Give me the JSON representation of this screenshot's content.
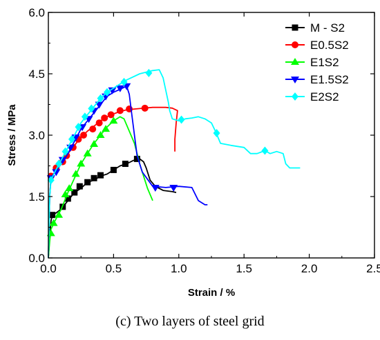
{
  "chart_data": {
    "type": "line",
    "xlabel": "Strain / %",
    "ylabel": "Stress / MPa",
    "caption": "(c) Two layers of steel grid",
    "xlim": [
      0.0,
      2.5
    ],
    "ylim": [
      0.0,
      6.0
    ],
    "xticks": [
      "0.0",
      "0.5",
      "1.0",
      "1.5",
      "2.0",
      "2.5"
    ],
    "yticks": [
      "0.0",
      "1.5",
      "3.0",
      "4.5",
      "6.0"
    ],
    "grid": false,
    "legend_position": "top-right",
    "series": [
      {
        "name": "M - S2",
        "color": "#000000",
        "marker": "square",
        "points": [
          [
            0.0,
            0.0
          ],
          [
            0.01,
            0.5
          ],
          [
            0.02,
            0.9
          ],
          [
            0.03,
            1.05
          ],
          [
            0.06,
            1.1
          ],
          [
            0.1,
            1.2
          ],
          [
            0.15,
            1.4
          ],
          [
            0.2,
            1.6
          ],
          [
            0.25,
            1.7
          ],
          [
            0.3,
            1.85
          ],
          [
            0.35,
            1.9
          ],
          [
            0.4,
            2.0
          ],
          [
            0.45,
            2.05
          ],
          [
            0.5,
            2.15
          ],
          [
            0.55,
            2.25
          ],
          [
            0.6,
            2.3
          ],
          [
            0.65,
            2.38
          ],
          [
            0.7,
            2.42
          ],
          [
            0.73,
            2.35
          ],
          [
            0.75,
            2.2
          ],
          [
            0.78,
            1.9
          ],
          [
            0.82,
            1.75
          ],
          [
            0.88,
            1.65
          ],
          [
            0.95,
            1.62
          ],
          [
            0.98,
            1.6
          ]
        ],
        "markers": [
          [
            0.03,
            1.05
          ],
          [
            0.11,
            1.25
          ],
          [
            0.15,
            1.45
          ],
          [
            0.2,
            1.6
          ],
          [
            0.24,
            1.75
          ],
          [
            0.3,
            1.85
          ],
          [
            0.35,
            1.95
          ],
          [
            0.4,
            2.02
          ],
          [
            0.5,
            2.15
          ],
          [
            0.59,
            2.3
          ],
          [
            0.68,
            2.42
          ]
        ]
      },
      {
        "name": "E0.5S2",
        "color": "#ff0000",
        "marker": "circle",
        "points": [
          [
            0.0,
            0.0
          ],
          [
            0.01,
            1.5
          ],
          [
            0.02,
            1.95
          ],
          [
            0.05,
            2.1
          ],
          [
            0.1,
            2.3
          ],
          [
            0.15,
            2.55
          ],
          [
            0.2,
            2.75
          ],
          [
            0.25,
            2.95
          ],
          [
            0.3,
            3.1
          ],
          [
            0.35,
            3.22
          ],
          [
            0.4,
            3.35
          ],
          [
            0.45,
            3.45
          ],
          [
            0.5,
            3.52
          ],
          [
            0.55,
            3.58
          ],
          [
            0.6,
            3.62
          ],
          [
            0.7,
            3.65
          ],
          [
            0.8,
            3.68
          ],
          [
            0.9,
            3.68
          ],
          [
            0.95,
            3.66
          ],
          [
            0.99,
            3.6
          ],
          [
            0.98,
            3.3
          ],
          [
            0.97,
            2.9
          ],
          [
            0.97,
            2.6
          ]
        ],
        "markers": [
          [
            0.02,
            2.0
          ],
          [
            0.06,
            2.2
          ],
          [
            0.11,
            2.35
          ],
          [
            0.14,
            2.5
          ],
          [
            0.19,
            2.7
          ],
          [
            0.23,
            2.9
          ],
          [
            0.27,
            3.0
          ],
          [
            0.34,
            3.15
          ],
          [
            0.39,
            3.3
          ],
          [
            0.43,
            3.42
          ],
          [
            0.48,
            3.5
          ],
          [
            0.55,
            3.6
          ],
          [
            0.62,
            3.64
          ],
          [
            0.74,
            3.66
          ]
        ]
      },
      {
        "name": "E1S2",
        "color": "#00ff00",
        "marker": "triangle-up",
        "points": [
          [
            0.0,
            0.0
          ],
          [
            0.01,
            0.4
          ],
          [
            0.02,
            0.7
          ],
          [
            0.05,
            0.9
          ],
          [
            0.1,
            1.2
          ],
          [
            0.15,
            1.6
          ],
          [
            0.2,
            1.95
          ],
          [
            0.25,
            2.3
          ],
          [
            0.3,
            2.55
          ],
          [
            0.35,
            2.8
          ],
          [
            0.4,
            3.0
          ],
          [
            0.45,
            3.2
          ],
          [
            0.5,
            3.35
          ],
          [
            0.55,
            3.45
          ],
          [
            0.58,
            3.4
          ],
          [
            0.62,
            3.1
          ],
          [
            0.66,
            2.8
          ],
          [
            0.7,
            2.3
          ],
          [
            0.73,
            2.0
          ],
          [
            0.76,
            1.7
          ],
          [
            0.8,
            1.4
          ]
        ],
        "markers": [
          [
            0.02,
            0.6
          ],
          [
            0.04,
            0.85
          ],
          [
            0.08,
            1.05
          ],
          [
            0.13,
            1.55
          ],
          [
            0.16,
            1.7
          ],
          [
            0.21,
            2.05
          ],
          [
            0.25,
            2.3
          ],
          [
            0.3,
            2.55
          ],
          [
            0.35,
            2.78
          ],
          [
            0.4,
            3.0
          ],
          [
            0.44,
            3.15
          ],
          [
            0.5,
            3.35
          ]
        ]
      },
      {
        "name": "E1.5S2",
        "color": "#0000ff",
        "marker": "triangle-down",
        "points": [
          [
            0.0,
            0.0
          ],
          [
            0.01,
            1.5
          ],
          [
            0.02,
            1.95
          ],
          [
            0.05,
            2.1
          ],
          [
            0.1,
            2.3
          ],
          [
            0.15,
            2.55
          ],
          [
            0.2,
            2.85
          ],
          [
            0.25,
            3.15
          ],
          [
            0.3,
            3.35
          ],
          [
            0.35,
            3.55
          ],
          [
            0.4,
            3.75
          ],
          [
            0.45,
            3.95
          ],
          [
            0.5,
            4.05
          ],
          [
            0.55,
            4.12
          ],
          [
            0.6,
            4.2
          ],
          [
            0.62,
            4.0
          ],
          [
            0.64,
            3.5
          ],
          [
            0.66,
            3.0
          ],
          [
            0.68,
            2.5
          ],
          [
            0.72,
            2.1
          ],
          [
            0.8,
            1.75
          ],
          [
            0.9,
            1.72
          ],
          [
            1.0,
            1.75
          ],
          [
            1.1,
            1.72
          ],
          [
            1.15,
            1.4
          ],
          [
            1.2,
            1.3
          ],
          [
            1.22,
            1.3
          ]
        ],
        "markers": [
          [
            0.02,
            1.95
          ],
          [
            0.06,
            2.1
          ],
          [
            0.11,
            2.4
          ],
          [
            0.17,
            2.7
          ],
          [
            0.21,
            2.95
          ],
          [
            0.26,
            3.2
          ],
          [
            0.31,
            3.4
          ],
          [
            0.35,
            3.6
          ],
          [
            0.39,
            3.75
          ],
          [
            0.44,
            3.95
          ],
          [
            0.49,
            4.1
          ],
          [
            0.55,
            4.15
          ],
          [
            0.6,
            4.2
          ],
          [
            0.82,
            1.72
          ],
          [
            0.96,
            1.72
          ]
        ]
      },
      {
        "name": "E2S2",
        "color": "#00ffff",
        "marker": "diamond",
        "points": [
          [
            0.0,
            0.0
          ],
          [
            0.01,
            1.5
          ],
          [
            0.02,
            1.9
          ],
          [
            0.05,
            2.1
          ],
          [
            0.1,
            2.4
          ],
          [
            0.15,
            2.7
          ],
          [
            0.2,
            3.0
          ],
          [
            0.25,
            3.3
          ],
          [
            0.3,
            3.5
          ],
          [
            0.35,
            3.7
          ],
          [
            0.4,
            3.9
          ],
          [
            0.45,
            4.05
          ],
          [
            0.5,
            4.15
          ],
          [
            0.55,
            4.25
          ],
          [
            0.6,
            4.35
          ],
          [
            0.7,
            4.5
          ],
          [
            0.8,
            4.58
          ],
          [
            0.85,
            4.6
          ],
          [
            0.88,
            4.4
          ],
          [
            0.9,
            4.1
          ],
          [
            0.92,
            3.8
          ],
          [
            0.93,
            3.6
          ],
          [
            0.95,
            3.4
          ],
          [
            1.0,
            3.35
          ],
          [
            1.05,
            3.4
          ],
          [
            1.1,
            3.42
          ],
          [
            1.15,
            3.45
          ],
          [
            1.2,
            3.4
          ],
          [
            1.25,
            3.3
          ],
          [
            1.28,
            3.1
          ],
          [
            1.32,
            2.8
          ],
          [
            1.4,
            2.75
          ],
          [
            1.5,
            2.7
          ],
          [
            1.55,
            2.55
          ],
          [
            1.6,
            2.55
          ],
          [
            1.66,
            2.62
          ],
          [
            1.7,
            2.55
          ],
          [
            1.75,
            2.6
          ],
          [
            1.8,
            2.55
          ],
          [
            1.82,
            2.3
          ],
          [
            1.85,
            2.2
          ],
          [
            1.9,
            2.2
          ],
          [
            1.93,
            2.2
          ]
        ],
        "markers": [
          [
            0.02,
            1.9
          ],
          [
            0.08,
            2.3
          ],
          [
            0.13,
            2.6
          ],
          [
            0.18,
            2.9
          ],
          [
            0.23,
            3.2
          ],
          [
            0.28,
            3.45
          ],
          [
            0.33,
            3.65
          ],
          [
            0.4,
            3.9
          ],
          [
            0.45,
            4.05
          ],
          [
            0.58,
            4.3
          ],
          [
            0.77,
            4.52
          ],
          [
            1.02,
            3.38
          ],
          [
            1.29,
            3.05
          ],
          [
            1.66,
            2.62
          ]
        ]
      }
    ]
  }
}
